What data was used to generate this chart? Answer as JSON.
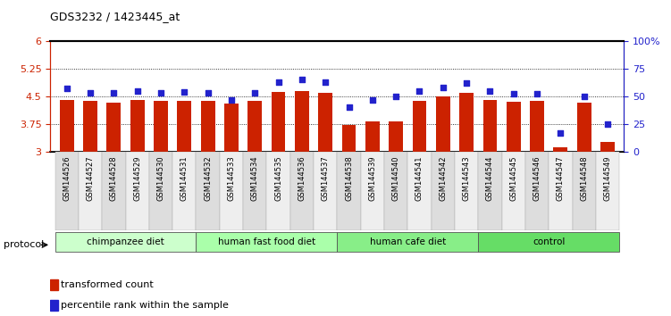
{
  "title": "GDS3232 / 1423445_at",
  "samples": [
    "GSM144526",
    "GSM144527",
    "GSM144528",
    "GSM144529",
    "GSM144530",
    "GSM144531",
    "GSM144532",
    "GSM144533",
    "GSM144534",
    "GSM144535",
    "GSM144536",
    "GSM144537",
    "GSM144538",
    "GSM144539",
    "GSM144540",
    "GSM144541",
    "GSM144542",
    "GSM144543",
    "GSM144544",
    "GSM144545",
    "GSM144546",
    "GSM144547",
    "GSM144548",
    "GSM144549"
  ],
  "bar_values": [
    4.4,
    4.38,
    4.33,
    4.4,
    4.38,
    4.38,
    4.37,
    4.3,
    4.37,
    4.62,
    4.65,
    4.6,
    3.73,
    3.82,
    3.83,
    4.38,
    4.5,
    4.6,
    4.4,
    4.35,
    4.38,
    3.13,
    4.32,
    3.26
  ],
  "percentile_values": [
    57,
    53,
    53,
    55,
    53,
    54,
    53,
    47,
    53,
    63,
    65,
    63,
    40,
    47,
    50,
    55,
    58,
    62,
    55,
    52,
    52,
    17,
    50,
    25
  ],
  "bar_color": "#cc2200",
  "dot_color": "#2222cc",
  "ylim_left": [
    3,
    6
  ],
  "ylim_right": [
    0,
    100
  ],
  "yticks_left": [
    3,
    3.75,
    4.5,
    5.25,
    6
  ],
  "ytick_labels_left": [
    "3",
    "3.75",
    "4.5",
    "5.25",
    "6"
  ],
  "yticks_right": [
    0,
    25,
    50,
    75,
    100
  ],
  "ytick_labels_right": [
    "0",
    "25",
    "50",
    "75",
    "100%"
  ],
  "hlines": [
    3.75,
    4.5,
    5.25
  ],
  "groups": [
    {
      "label": "chimpanzee diet",
      "start": 0,
      "end": 5,
      "color": "#ccffcc"
    },
    {
      "label": "human fast food diet",
      "start": 6,
      "end": 11,
      "color": "#aaffaa"
    },
    {
      "label": "human cafe diet",
      "start": 12,
      "end": 17,
      "color": "#88ee88"
    },
    {
      "label": "control",
      "start": 18,
      "end": 23,
      "color": "#66dd66"
    }
  ],
  "protocol_label": "protocol",
  "legend_bar_label": "transformed count",
  "legend_dot_label": "percentile rank within the sample",
  "bar_bottom": 3
}
